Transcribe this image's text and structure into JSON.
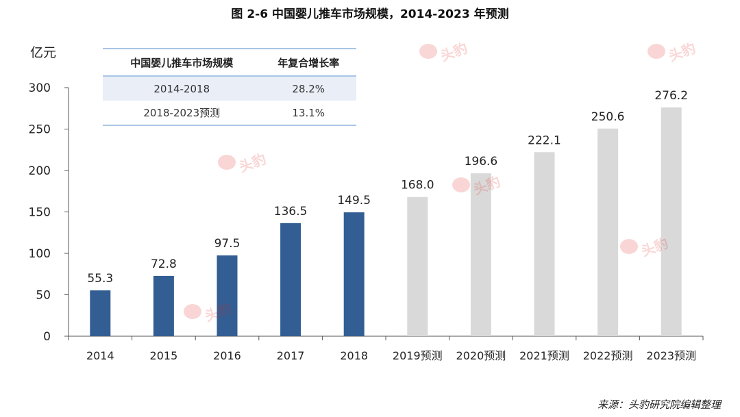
{
  "title": "图 2-6 中国婴儿推车市场规模，2014-2023 年预测",
  "unit_label": "亿元",
  "source": "来源：头豹研究院编辑整理",
  "watermark": "头豹",
  "colors": {
    "actual": "#335e93",
    "forecast": "#d9d9d9",
    "axis": "#555555",
    "table_rule": "#a9c6e5",
    "table_shade": "#e9eef7"
  },
  "table": {
    "headers": [
      "中国婴儿推车市场规模",
      "年复合增长率"
    ],
    "rows": [
      {
        "period": "2014-2018",
        "cagr": "28.2%"
      },
      {
        "period": "2018-2023预测",
        "cagr": "13.1%"
      }
    ]
  },
  "chart_data": {
    "type": "bar",
    "categories": [
      "2014",
      "2015",
      "2016",
      "2017",
      "2018",
      "2019预测",
      "2020预测",
      "2021预测",
      "2022预测",
      "2023预测"
    ],
    "values": [
      55.3,
      72.8,
      97.5,
      136.5,
      149.5,
      168.0,
      196.6,
      222.1,
      250.6,
      276.2
    ],
    "value_labels": [
      "55.3",
      "72.8",
      "97.5",
      "136.5",
      "149.5",
      "168.0",
      "196.6",
      "222.1",
      "250.6",
      "276.2"
    ],
    "forecast": [
      false,
      false,
      false,
      false,
      false,
      true,
      true,
      true,
      true,
      true
    ],
    "ylabel": "亿元",
    "ylim": [
      0,
      300
    ],
    "yticks": [
      0,
      50,
      100,
      150,
      200,
      250,
      300
    ],
    "grid": false,
    "legend": "none"
  }
}
